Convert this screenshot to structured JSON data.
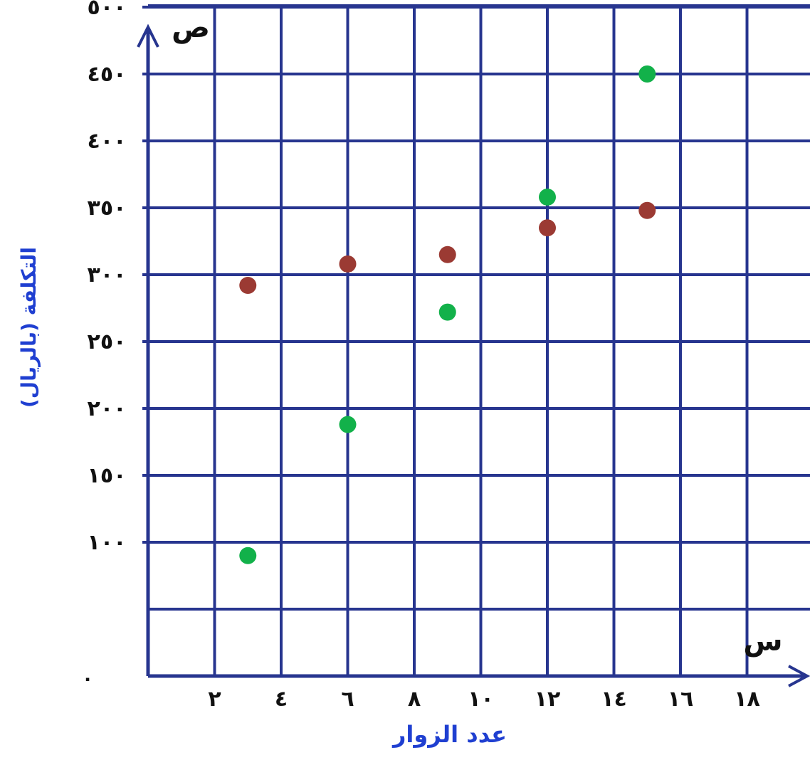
{
  "chart_data": {
    "type": "scatter",
    "title": "",
    "xlabel": "عدد الزوار",
    "ylabel": "التكلفة (بالريال)",
    "x_axis_symbol": "س",
    "y_axis_symbol": "ص",
    "origin_label": "٠",
    "xlim": [
      0,
      20
    ],
    "ylim": [
      0,
      540
    ],
    "x_ticks": [
      {
        "value": 2,
        "label": "٢"
      },
      {
        "value": 4,
        "label": "٤"
      },
      {
        "value": 6,
        "label": "٦"
      },
      {
        "value": 8,
        "label": "٨"
      },
      {
        "value": 10,
        "label": "١٠"
      },
      {
        "value": 12,
        "label": "١٢"
      },
      {
        "value": 14,
        "label": "١٤"
      },
      {
        "value": 16,
        "label": "١٦"
      },
      {
        "value": 18,
        "label": "١٨"
      }
    ],
    "y_ticks": [
      {
        "value": 100,
        "label": "١٠٠"
      },
      {
        "value": 150,
        "label": "١٥٠"
      },
      {
        "value": 200,
        "label": "٢٠٠"
      },
      {
        "value": 250,
        "label": "٢٥٠"
      },
      {
        "value": 300,
        "label": "٣٠٠"
      },
      {
        "value": 350,
        "label": "٣٥٠"
      },
      {
        "value": 400,
        "label": "٤٠٠"
      },
      {
        "value": 450,
        "label": "٤٥٠"
      },
      {
        "value": 500,
        "label": "٥٠٠"
      }
    ],
    "grid": true,
    "series": [
      {
        "color": "#9b3a33",
        "points": [
          [
            3,
            292
          ],
          [
            6,
            308
          ],
          [
            9,
            315
          ],
          [
            12,
            335
          ],
          [
            15,
            348
          ]
        ]
      },
      {
        "color": "#12b14a",
        "points": [
          [
            3,
            90
          ],
          [
            6,
            188
          ],
          [
            9,
            272
          ],
          [
            12,
            358
          ],
          [
            15,
            450
          ]
        ]
      }
    ]
  },
  "colors": {
    "grid": "#27358f",
    "axis": "#27358f",
    "xlabel": "#1f3fd1",
    "ylabel": "#1f3fd1"
  }
}
